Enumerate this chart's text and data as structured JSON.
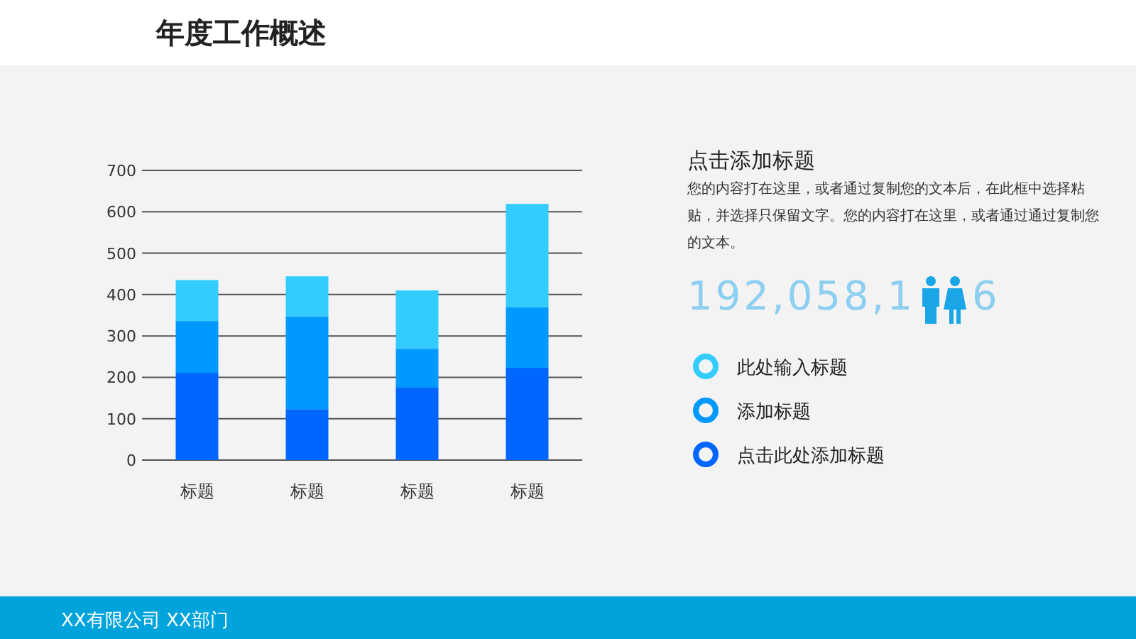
{
  "chart_data": {
    "type": "bar",
    "title": "年度工作概述",
    "subtitle": "点击添加标题",
    "stacked": true,
    "grid": "y",
    "legend": "right",
    "categories": [
      "标题",
      "标题",
      "标题",
      "标题"
    ],
    "series": [
      {
        "name": "点击此处添加标题",
        "color": "#0066ff",
        "values": [
          211,
          123,
          175,
          223
        ]
      },
      {
        "name": "添加标题",
        "color": "#0099ff",
        "values": [
          125,
          224,
          94,
          146
        ]
      },
      {
        "name": "此处输入标题",
        "color": "#33ccff",
        "values": [
          99,
          97,
          141,
          250
        ]
      }
    ],
    "ylim": [
      0,
      700
    ],
    "yticks": [
      0,
      100,
      200,
      300,
      400,
      500,
      600,
      700
    ],
    "annotations": [
      "您的内容打在这里，或者通过复制您的文本后，在此框中选择粘贴，并选择只保留文字。您的内容打在这里，或者通过通过复制您的文本。",
      "192,058,1",
      "6",
      "XX有限公司 XX部门"
    ]
  }
}
